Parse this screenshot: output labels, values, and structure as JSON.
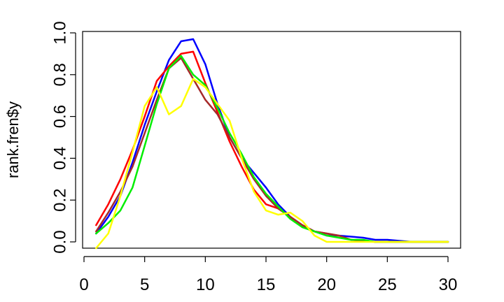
{
  "chart_data": {
    "type": "line",
    "title": "",
    "xlabel": "",
    "ylabel": "rank.fren$y",
    "xlim": [
      1,
      30
    ],
    "ylim": [
      0,
      1
    ],
    "x_ticks": [
      "0",
      "5",
      "10",
      "15",
      "20",
      "25",
      "30"
    ],
    "x_tick_values": [
      0,
      5,
      10,
      15,
      20,
      25,
      30
    ],
    "y_ticks": [
      "0.0",
      "0.2",
      "0.4",
      "0.6",
      "0.8",
      "1.0"
    ],
    "y_tick_values": [
      0.0,
      0.2,
      0.4,
      0.6,
      0.8,
      1.0
    ],
    "grid": false,
    "legend": "none",
    "x": [
      1,
      2,
      3,
      4,
      5,
      6,
      7,
      8,
      9,
      10,
      11,
      12,
      13,
      14,
      15,
      16,
      17,
      18,
      19,
      20,
      21,
      22,
      23,
      24,
      25,
      26,
      27,
      28,
      29,
      30
    ],
    "series": [
      {
        "color": "#0000ff",
        "values": [
          0.04,
          0.12,
          0.22,
          0.38,
          0.56,
          0.72,
          0.87,
          0.96,
          0.97,
          0.85,
          0.66,
          0.5,
          0.4,
          0.33,
          0.26,
          0.18,
          0.12,
          0.08,
          0.05,
          0.03,
          0.03,
          0.025,
          0.02,
          0.01,
          0.01,
          0.005,
          0.0,
          0.0,
          0.0,
          0.0
        ]
      },
      {
        "color": "#ff0000",
        "values": [
          0.08,
          0.18,
          0.3,
          0.44,
          0.6,
          0.77,
          0.84,
          0.9,
          0.91,
          0.76,
          0.62,
          0.48,
          0.36,
          0.25,
          0.18,
          0.16,
          0.12,
          0.08,
          0.05,
          0.04,
          0.03,
          0.01,
          0.005,
          0.0,
          0.0,
          0.0,
          0.0,
          0.0,
          0.0,
          0.0
        ]
      },
      {
        "color": "#a52a2a",
        "values": [
          0.05,
          0.14,
          0.24,
          0.36,
          0.52,
          0.68,
          0.83,
          0.88,
          0.78,
          0.68,
          0.61,
          0.5,
          0.4,
          0.3,
          0.22,
          0.16,
          0.12,
          0.08,
          0.05,
          0.04,
          0.03,
          0.01,
          0.005,
          0.0,
          0.0,
          0.0,
          0.0,
          0.0,
          0.0,
          0.0
        ]
      },
      {
        "color": "#00ee00",
        "values": [
          0.04,
          0.09,
          0.15,
          0.26,
          0.46,
          0.66,
          0.83,
          0.89,
          0.8,
          0.75,
          0.64,
          0.52,
          0.42,
          0.31,
          0.23,
          0.17,
          0.11,
          0.07,
          0.05,
          0.03,
          0.02,
          0.01,
          0.01,
          0.0,
          0.0,
          0.0,
          0.0,
          0.0,
          0.0,
          0.0
        ]
      },
      {
        "color": "#ffff00",
        "values": [
          -0.03,
          0.04,
          0.22,
          0.43,
          0.65,
          0.74,
          0.61,
          0.65,
          0.78,
          0.74,
          0.66,
          0.58,
          0.4,
          0.24,
          0.15,
          0.13,
          0.14,
          0.1,
          0.03,
          0.0,
          0.0,
          0.0,
          0.0,
          0.0,
          0.0,
          0.0,
          0.0,
          0.0,
          0.0,
          0.0
        ]
      }
    ]
  }
}
